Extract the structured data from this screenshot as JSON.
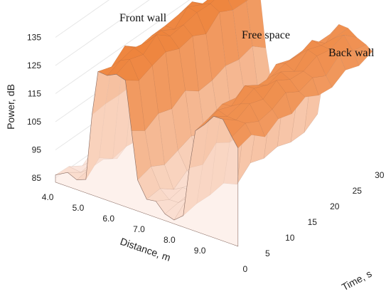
{
  "chart_data": {
    "type": "surface-3d",
    "ylabel": "Power, dB",
    "xlabel": "Distance, m",
    "zlabel": "Time, s",
    "y_ticks": [
      "85",
      "95",
      "105",
      "115",
      "125",
      "135"
    ],
    "x_ticks": [
      "4.0",
      "5.0",
      "6.0",
      "7.0",
      "8.0",
      "9.0"
    ],
    "z_ticks": [
      "0",
      "5",
      "10",
      "15",
      "20",
      "25",
      "30"
    ],
    "ylim": [
      85,
      135
    ],
    "xlim": [
      3.6,
      9.6
    ],
    "zlim": [
      0,
      30
    ],
    "annotations": [
      "Front wall",
      "Free space",
      "Back wall"
    ],
    "colors": {
      "low": "#fbe5dc",
      "mid": "#f6b79a",
      "high": "#ed7d31",
      "edge": "#d9b7a6",
      "shadow": "#8a6d64"
    },
    "profile": [
      {
        "x": 3.6,
        "y": 85
      },
      {
        "x": 4.0,
        "y": 86
      },
      {
        "x": 4.3,
        "y": 87
      },
      {
        "x": 4.6,
        "y": 90
      },
      {
        "x": 4.8,
        "y": 112
      },
      {
        "x": 5.0,
        "y": 128
      },
      {
        "x": 5.3,
        "y": 130
      },
      {
        "x": 5.6,
        "y": 131
      },
      {
        "x": 5.9,
        "y": 127
      },
      {
        "x": 6.1,
        "y": 110
      },
      {
        "x": 6.3,
        "y": 95
      },
      {
        "x": 6.6,
        "y": 88
      },
      {
        "x": 6.9,
        "y": 87
      },
      {
        "x": 7.2,
        "y": 86
      },
      {
        "x": 7.5,
        "y": 87
      },
      {
        "x": 7.8,
        "y": 88
      },
      {
        "x": 8.0,
        "y": 105
      },
      {
        "x": 8.2,
        "y": 121
      },
      {
        "x": 8.5,
        "y": 124
      },
      {
        "x": 8.8,
        "y": 125
      },
      {
        "x": 9.1,
        "y": 125
      },
      {
        "x": 9.4,
        "y": 122
      },
      {
        "x": 9.6,
        "y": 118
      }
    ]
  }
}
